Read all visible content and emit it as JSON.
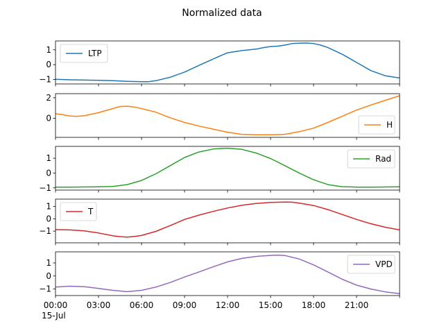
{
  "figure": {
    "title": "Normalized data"
  },
  "chart_data": {
    "type": "line",
    "title": "Normalized data",
    "xlim": [
      0,
      24
    ],
    "x_ticks": [
      {
        "x": 0,
        "label": "00:00"
      },
      {
        "x": 3,
        "label": "03:00"
      },
      {
        "x": 6,
        "label": "06:00"
      },
      {
        "x": 9,
        "label": "09:00"
      },
      {
        "x": 12,
        "label": "12:00"
      },
      {
        "x": 15,
        "label": "15:00"
      },
      {
        "x": 18,
        "label": "18:00"
      },
      {
        "x": 21,
        "label": "21:00"
      }
    ],
    "x_date_label": "15-Jul",
    "x_unit": "hour of day",
    "panels": [
      {
        "series": {
          "name": "LTP",
          "color": "#1f77b4",
          "x": [
            0,
            1,
            2,
            3,
            4,
            5,
            6,
            6.5,
            7,
            8,
            9,
            10,
            11,
            11.5,
            12,
            13,
            14,
            14.5,
            15,
            15.5,
            16,
            16.5,
            17,
            17.5,
            18,
            18.5,
            19,
            20,
            21,
            22,
            23,
            24
          ],
          "y": [
            -0.98,
            -1.02,
            -1.04,
            -1.05,
            -1.08,
            -1.12,
            -1.15,
            -1.15,
            -1.08,
            -0.85,
            -0.5,
            -0.05,
            0.38,
            0.6,
            0.8,
            0.95,
            1.05,
            1.15,
            1.22,
            1.25,
            1.32,
            1.42,
            1.45,
            1.46,
            1.42,
            1.32,
            1.15,
            0.7,
            0.15,
            -0.4,
            -0.75,
            -0.9
          ]
        },
        "ylim": [
          -1.3,
          1.6
        ],
        "yticks": [
          -1,
          0,
          1
        ],
        "legend_loc": "upper left"
      },
      {
        "series": {
          "name": "H",
          "color": "#ff7f0e",
          "x": [
            0,
            0.5,
            1,
            1.5,
            2,
            3,
            4,
            4.5,
            5,
            5.5,
            6,
            7,
            8,
            9,
            10,
            11,
            12,
            13,
            14,
            15,
            16,
            17,
            18,
            19,
            20,
            21,
            22,
            23,
            24
          ],
          "y": [
            0.45,
            0.35,
            0.22,
            0.2,
            0.25,
            0.55,
            0.95,
            1.15,
            1.18,
            1.1,
            0.95,
            0.6,
            0.05,
            -0.4,
            -0.75,
            -1.05,
            -1.35,
            -1.55,
            -1.6,
            -1.6,
            -1.55,
            -1.3,
            -0.95,
            -0.4,
            0.2,
            0.8,
            1.3,
            1.75,
            2.2
          ]
        },
        "ylim": [
          -1.85,
          2.4
        ],
        "yticks": [
          0,
          2
        ],
        "legend_loc": "lower right"
      },
      {
        "series": {
          "name": "Rad",
          "color": "#2ca02c",
          "x": [
            0,
            1,
            2,
            3,
            4,
            5,
            6,
            7,
            8,
            9,
            10,
            11,
            12,
            13,
            14,
            15,
            16,
            17,
            18,
            19,
            20,
            21,
            22,
            23,
            24
          ],
          "y": [
            -0.95,
            -0.95,
            -0.94,
            -0.93,
            -0.9,
            -0.78,
            -0.5,
            -0.05,
            0.5,
            1.05,
            1.42,
            1.62,
            1.68,
            1.6,
            1.35,
            0.98,
            0.5,
            0.0,
            -0.45,
            -0.78,
            -0.92,
            -0.95,
            -0.95,
            -0.94,
            -0.93
          ]
        },
        "ylim": [
          -1.15,
          1.8
        ],
        "yticks": [
          -1,
          0,
          1
        ],
        "legend_loc": "upper right"
      },
      {
        "series": {
          "name": "T",
          "color": "#d62728",
          "x": [
            0,
            1,
            2,
            3,
            4,
            4.5,
            5,
            5.5,
            6,
            7,
            8,
            9,
            10,
            11,
            12,
            13,
            14,
            15,
            16,
            16.5,
            17,
            18,
            19,
            20,
            21,
            22,
            23,
            24
          ],
          "y": [
            -0.88,
            -0.9,
            -0.98,
            -1.15,
            -1.38,
            -1.45,
            -1.48,
            -1.44,
            -1.35,
            -1.02,
            -0.55,
            -0.05,
            0.3,
            0.6,
            0.88,
            1.1,
            1.25,
            1.33,
            1.36,
            1.35,
            1.28,
            1.08,
            0.75,
            0.35,
            -0.05,
            -0.4,
            -0.68,
            -0.9
          ]
        },
        "ylim": [
          -1.95,
          1.6
        ],
        "yticks": [
          -1,
          0,
          1
        ],
        "legend_loc": "upper left"
      },
      {
        "series": {
          "name": "VPD",
          "color": "#9467bd",
          "x": [
            0,
            1,
            2,
            3,
            4,
            5,
            6,
            7,
            8,
            9,
            10,
            11,
            12,
            13,
            14,
            15,
            15.5,
            16,
            17,
            18,
            19,
            20,
            21,
            22,
            23,
            24
          ],
          "y": [
            -0.85,
            -0.78,
            -0.82,
            -0.95,
            -1.1,
            -1.2,
            -1.1,
            -0.85,
            -0.5,
            -0.08,
            0.3,
            0.7,
            1.08,
            1.35,
            1.5,
            1.58,
            1.6,
            1.57,
            1.3,
            0.85,
            0.3,
            -0.25,
            -0.7,
            -1.0,
            -1.22,
            -1.35
          ]
        },
        "ylim": [
          -1.5,
          1.85
        ],
        "yticks": [
          -1,
          0,
          1
        ],
        "legend_loc": "upper right"
      }
    ]
  }
}
